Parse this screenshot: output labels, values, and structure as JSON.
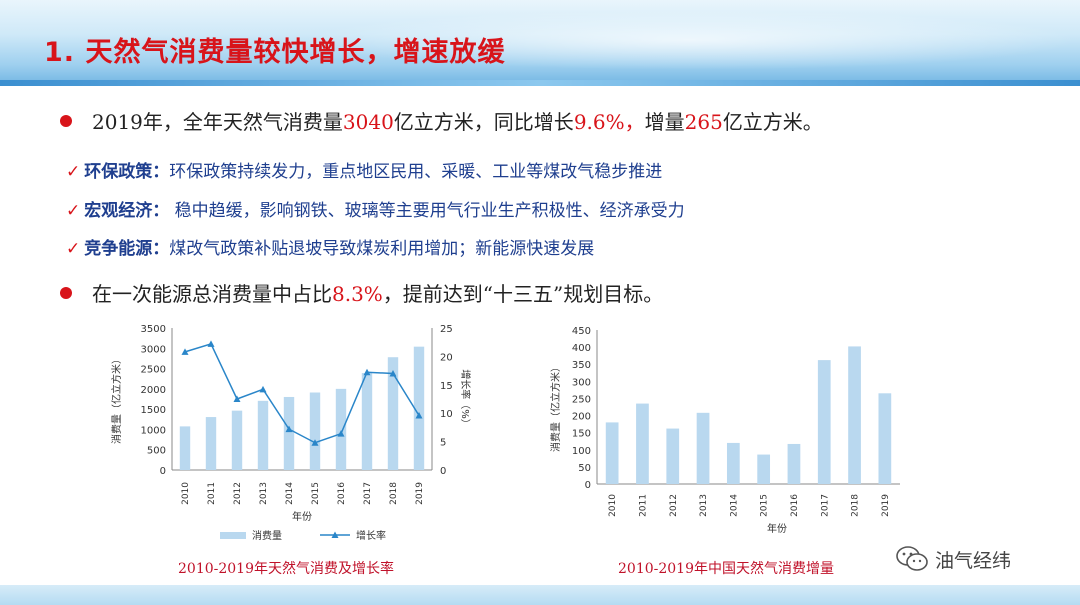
{
  "slide": {
    "title": "1. 天然气消费量较快增长，增速放缓"
  },
  "bullet1": {
    "p1": "2019年，全年天然气消费量",
    "v1": "3040",
    "p2": "亿立方米，同比增长",
    "v2": "9.6%，",
    "p3": "增量",
    "v3": "265",
    "p4": "亿立方米。"
  },
  "checks": [
    {
      "label": "环保政策：",
      "text": "环保政策持续发力，重点地区民用、采暖、工业等煤改气稳步推进"
    },
    {
      "label": "宏观经济：",
      "text": " 稳中趋缓，影响钢铁、玻璃等主要用气行业生产积极性、经济承受力"
    },
    {
      "label": "竞争能源：",
      "text": "煤改气政策补贴退坡导致煤炭利用增加；新能源快速发展"
    }
  ],
  "bullet2": {
    "p1": "在一次能源总消费量中占比",
    "v1": "8.3%",
    "p2": "，提前达到“十三五”规划目标。"
  },
  "colors": {
    "bar": "#b9d8ef",
    "line": "#2a86c9",
    "accent": "#d8141a"
  },
  "chart_data": [
    {
      "type": "bar+line",
      "categories": [
        "2010",
        "2011",
        "2012",
        "2013",
        "2014",
        "2015",
        "2016",
        "2017",
        "2018",
        "2019"
      ],
      "series": [
        {
          "name": "消费量",
          "type": "bar",
          "axis": "left",
          "values": [
            1075,
            1305,
            1463,
            1705,
            1800,
            1910,
            2000,
            2390,
            2780,
            3040
          ]
        },
        {
          "name": "增长率",
          "type": "line",
          "axis": "right",
          "values": [
            20.8,
            22.2,
            12.5,
            14.2,
            7.2,
            4.8,
            6.4,
            17.2,
            17.0,
            9.6
          ]
        }
      ],
      "left_axis": {
        "label": "消费量（亿立方米）",
        "ylim": [
          0,
          3500
        ],
        "ticks": [
          "0",
          "500",
          "1000",
          "1500",
          "2000",
          "2500",
          "3000",
          "3500"
        ]
      },
      "right_axis": {
        "label": "增长率（%）",
        "ylim": [
          0,
          25
        ],
        "ticks": [
          "0",
          "5",
          "10",
          "15",
          "20",
          "25"
        ]
      },
      "xlabel": "年份",
      "legend": [
        "消费量",
        "增长率"
      ],
      "caption": "2010-2019年天然气消费及增长率"
    },
    {
      "type": "bar",
      "categories": [
        "2010",
        "2011",
        "2012",
        "2013",
        "2014",
        "2015",
        "2016",
        "2017",
        "2018",
        "2019"
      ],
      "values": [
        180,
        235,
        162,
        208,
        120,
        86,
        117,
        362,
        402,
        265
      ],
      "ylabel": "消费量（亿立方米）",
      "ylim": [
        0,
        450
      ],
      "ticks": [
        "0",
        "50",
        "100",
        "150",
        "200",
        "250",
        "300",
        "350",
        "400",
        "450"
      ],
      "xlabel": "年份",
      "caption": "2010-2019年中国天然气消费增量"
    }
  ],
  "brand": {
    "name": "油气经纬",
    "icon": "wechat-icon"
  }
}
